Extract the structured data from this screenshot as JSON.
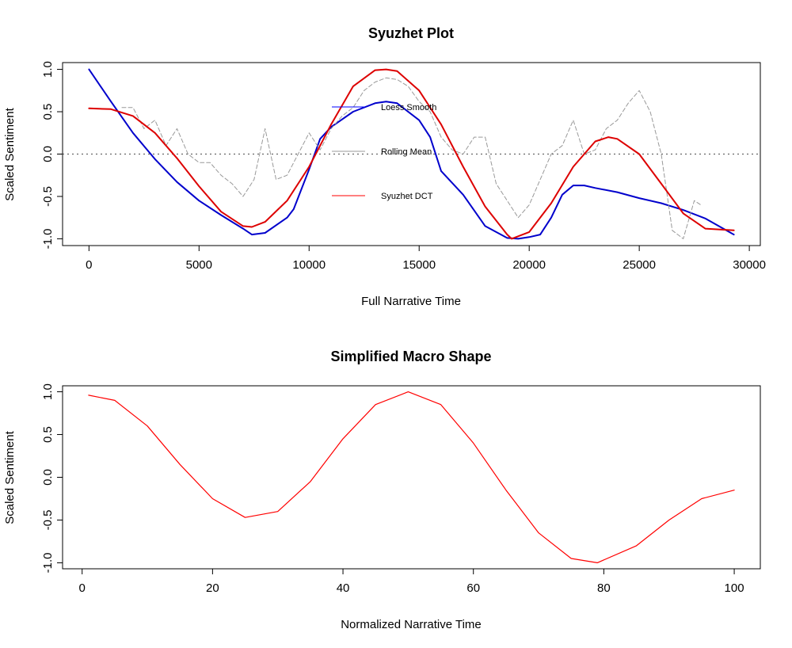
{
  "chart_data": [
    {
      "type": "line",
      "title": "Syuzhet Plot",
      "xlabel": "Full Narrative Time",
      "ylabel": "Scaled Sentiment",
      "xlim": [
        -1200,
        30500
      ],
      "ylim": [
        -1.08,
        1.08
      ],
      "xticks": [
        0,
        5000,
        10000,
        15000,
        20000,
        25000,
        30000
      ],
      "yticks": [
        -1.0,
        -0.5,
        0.0,
        0.5,
        1.0
      ],
      "xtick_labels": [
        "0",
        "5000",
        "10000",
        "15000",
        "20000",
        "25000",
        "30000"
      ],
      "ytick_labels": [
        "-1.0",
        "-0.5",
        "0.0",
        "0.5",
        "1.0"
      ],
      "grid": false,
      "reference_line": {
        "y": 0,
        "style": "dotted",
        "color": "#666666"
      },
      "legend": {
        "position": "center",
        "entries": [
          {
            "label": "Loess Smooth",
            "color": "#0000ff"
          },
          {
            "label": "Rolling Mean",
            "color": "#999999"
          },
          {
            "label": "Syuzhet DCT",
            "color": "#ff0000"
          }
        ]
      },
      "series": [
        {
          "name": "Loess Smooth",
          "color": "#0000cc",
          "style": "solid",
          "x": [
            0,
            1000,
            2000,
            3000,
            4000,
            5000,
            6000,
            7000,
            7400,
            8000,
            9000,
            9300,
            10000,
            10500,
            11000,
            12000,
            13000,
            13500,
            14000,
            15000,
            15500,
            16000,
            17000,
            18000,
            19000,
            19500,
            20000,
            20500,
            21000,
            21500,
            22000,
            22500,
            23000,
            24000,
            25000,
            26000,
            27000,
            28000,
            29300
          ],
          "y": [
            1.0,
            0.62,
            0.25,
            -0.06,
            -0.33,
            -0.55,
            -0.72,
            -0.88,
            -0.95,
            -0.93,
            -0.75,
            -0.65,
            -0.18,
            0.18,
            0.32,
            0.5,
            0.6,
            0.62,
            0.6,
            0.4,
            0.2,
            -0.2,
            -0.48,
            -0.85,
            -0.99,
            -1.0,
            -0.98,
            -0.95,
            -0.75,
            -0.48,
            -0.37,
            -0.37,
            -0.4,
            -0.45,
            -0.52,
            -0.58,
            -0.66,
            -0.76,
            -0.95
          ]
        },
        {
          "name": "Rolling Mean",
          "color": "#999999",
          "style": "dashed",
          "x": [
            1500,
            2000,
            2500,
            3000,
            3500,
            4000,
            4500,
            5000,
            5500,
            6000,
            6500,
            7000,
            7500,
            8000,
            8500,
            9000,
            9500,
            10000,
            10500,
            11000,
            11500,
            12000,
            12500,
            13000,
            13500,
            14000,
            14500,
            15000,
            15500,
            16000,
            16500,
            17000,
            17500,
            18000,
            18500,
            19000,
            19500,
            20000,
            20500,
            21000,
            21500,
            22000,
            22500,
            23000,
            23500,
            24000,
            24500,
            25000,
            25500,
            26000,
            26500,
            27000,
            27500,
            27800
          ],
          "y": [
            0.55,
            0.55,
            0.3,
            0.4,
            0.1,
            0.3,
            0.0,
            -0.1,
            -0.1,
            -0.25,
            -0.35,
            -0.5,
            -0.3,
            0.3,
            -0.3,
            -0.25,
            0.0,
            0.25,
            0.05,
            0.3,
            0.45,
            0.55,
            0.75,
            0.85,
            0.9,
            0.88,
            0.8,
            0.62,
            0.5,
            0.2,
            0.05,
            0.0,
            0.2,
            0.2,
            -0.35,
            -0.55,
            -0.75,
            -0.6,
            -0.3,
            0.0,
            0.1,
            0.4,
            0.0,
            0.05,
            0.3,
            0.4,
            0.6,
            0.75,
            0.5,
            0.0,
            -0.9,
            -1.0,
            -0.55,
            -0.6
          ]
        },
        {
          "name": "Syuzhet DCT",
          "color": "#dd0000",
          "style": "solid",
          "x": [
            0,
            1000,
            2000,
            3000,
            4000,
            5000,
            6000,
            7000,
            7400,
            8000,
            9000,
            10000,
            11000,
            12000,
            13000,
            13500,
            14000,
            15000,
            16000,
            17000,
            18000,
            19000,
            19200,
            20000,
            21000,
            22000,
            23000,
            23600,
            24000,
            25000,
            26000,
            27000,
            28000,
            29300
          ],
          "y": [
            0.54,
            0.53,
            0.45,
            0.25,
            -0.05,
            -0.38,
            -0.68,
            -0.85,
            -0.86,
            -0.8,
            -0.55,
            -0.15,
            0.35,
            0.8,
            0.99,
            1.0,
            0.98,
            0.75,
            0.35,
            -0.15,
            -0.62,
            -0.95,
            -1.0,
            -0.92,
            -0.58,
            -0.15,
            0.15,
            0.2,
            0.18,
            0.0,
            -0.35,
            -0.7,
            -0.88,
            -0.9
          ]
        }
      ]
    },
    {
      "type": "line",
      "title": "Simplified Macro Shape",
      "xlabel": "Normalized Narrative Time",
      "ylabel": "Scaled Sentiment",
      "xlim": [
        -3,
        104
      ],
      "ylim": [
        -1.07,
        1.07
      ],
      "xticks": [
        0,
        20,
        40,
        60,
        80,
        100
      ],
      "yticks": [
        -1.0,
        -0.5,
        0.0,
        0.5,
        1.0
      ],
      "xtick_labels": [
        "0",
        "20",
        "40",
        "60",
        "80",
        "100"
      ],
      "ytick_labels": [
        "-1.0",
        "-0.5",
        "0.0",
        "0.5",
        "1.0"
      ],
      "grid": false,
      "series": [
        {
          "color": "#ff0000",
          "style": "solid",
          "x": [
            1,
            5,
            10,
            15,
            20,
            25,
            30,
            35,
            40,
            45,
            50,
            55,
            60,
            65,
            70,
            75,
            79,
            85,
            90,
            95,
            100
          ],
          "y": [
            0.96,
            0.9,
            0.6,
            0.15,
            -0.25,
            -0.47,
            -0.4,
            -0.05,
            0.45,
            0.85,
            1.0,
            0.85,
            0.4,
            -0.15,
            -0.65,
            -0.95,
            -1.0,
            -0.8,
            -0.5,
            -0.25,
            -0.15
          ]
        }
      ]
    }
  ]
}
